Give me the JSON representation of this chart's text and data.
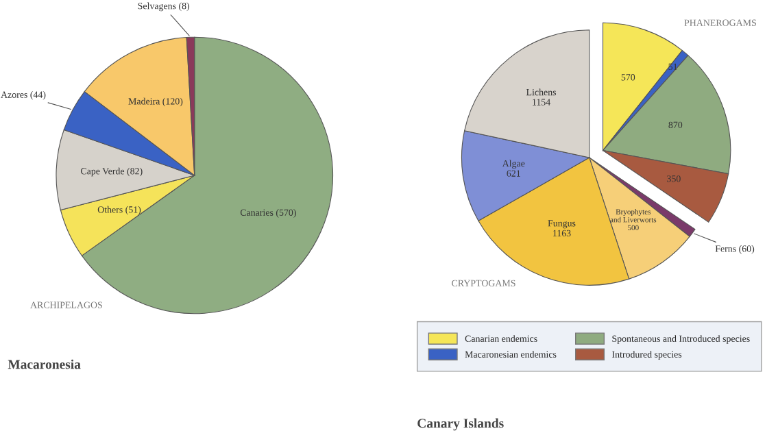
{
  "chart_data": [
    {
      "type": "pie",
      "title": "Macaronesia",
      "annotations": [
        "ARCHIPELAGOS"
      ],
      "categories": [
        null,
        null,
        null,
        null,
        null,
        null
      ],
      "values": [
        570,
        51,
        82,
        44,
        120,
        8
      ],
      "colors": [
        "#8fad82",
        "#f5e35a",
        "#d6d2cb",
        "#3a62c4",
        "#f8c86a",
        "#8a3a5a"
      ],
      "value_labels": [
        "Canaries (570)",
        "Others (51)",
        "Cape Verde (82)",
        "Azores (44)",
        "Madeira (120)",
        "Selvagens (8)"
      ],
      "legend": false
    },
    {
      "type": "pie",
      "title": "Canary Islands",
      "annotations": [
        "PHANEROGAMS",
        "CRYPTOGAMS"
      ],
      "categories": [
        "Canarian endemics",
        "Macaronesian endemics",
        "Spontaneous and Introduced species",
        "Introdured species",
        null,
        null,
        null,
        null,
        null
      ],
      "values": [
        570,
        51,
        870,
        350,
        60,
        500,
        1163,
        621,
        1154
      ],
      "colors": [
        "#f5e658",
        "#3a62c4",
        "#8fab80",
        "#a85a40",
        "#7a3a6a",
        "#f6cf78",
        "#f2c440",
        "#7f8fd6",
        "#d8d3cc"
      ],
      "value_labels": [
        "570",
        "51",
        "870",
        "350",
        "Ferns (60)",
        "Bryophytes\nand Liverworts\n500",
        "Fungus\n1163",
        "Algae\n621",
        "Lichens\n1154"
      ],
      "legend": "bottom"
    }
  ]
}
